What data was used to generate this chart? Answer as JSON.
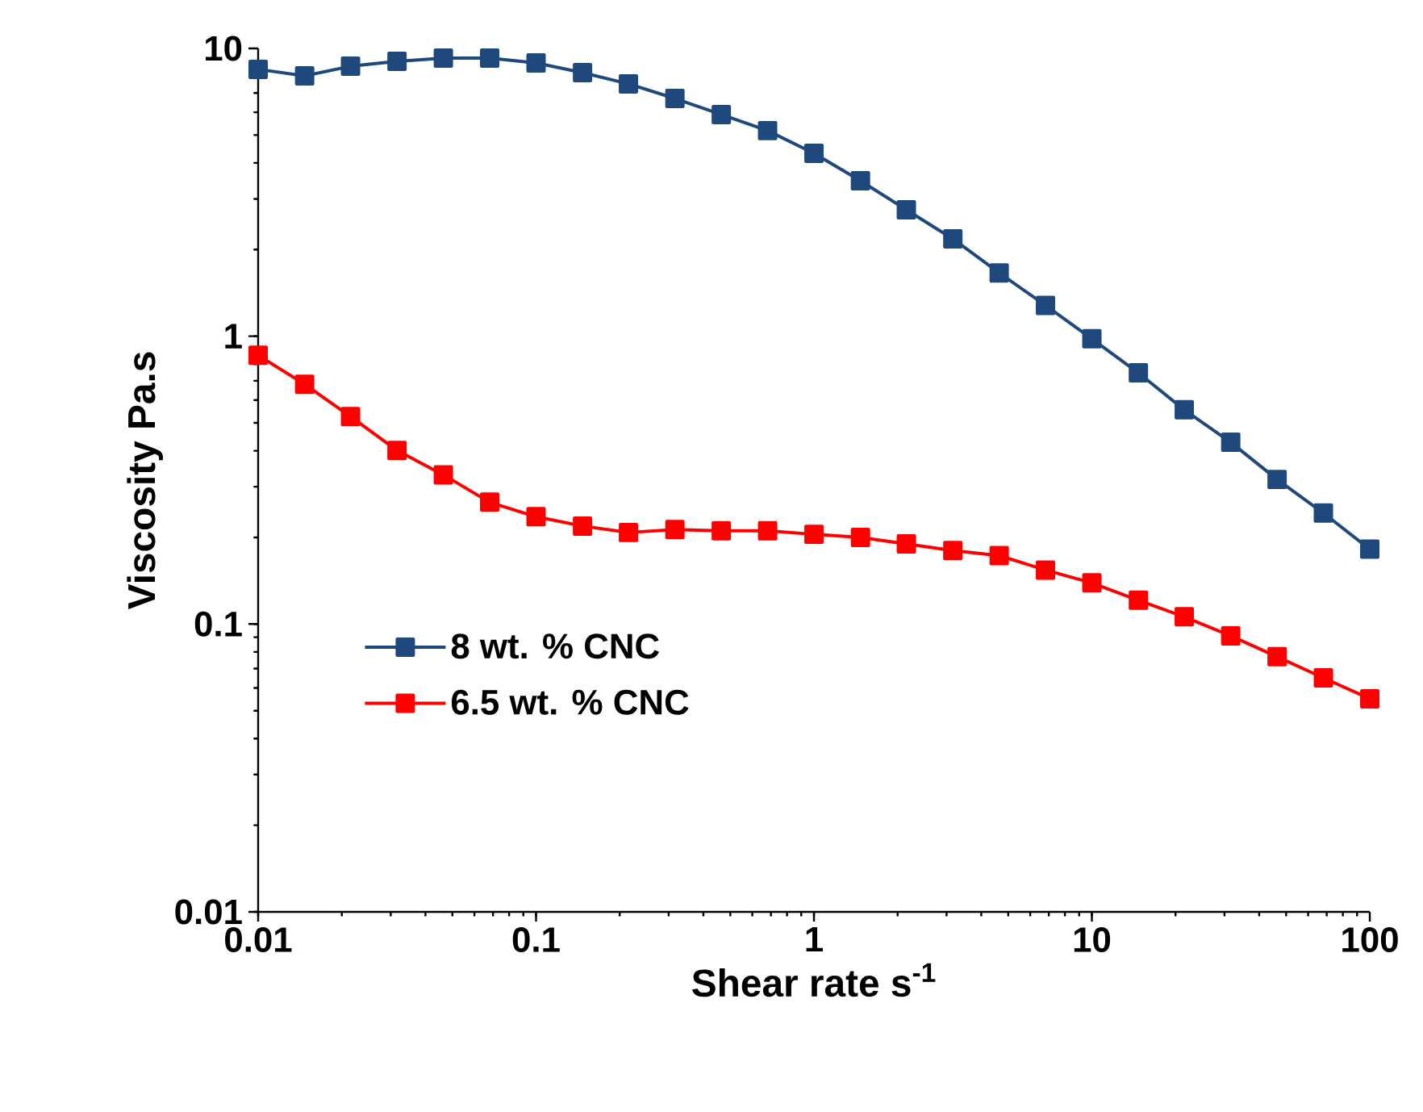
{
  "chart_data": {
    "type": "line",
    "xlabel": "Shear rate s$^{-1}$",
    "ylabel": "Viscosity Pa.s",
    "log": "xy",
    "xlim": [
      0.01,
      100
    ],
    "ylim": [
      0.01,
      10
    ],
    "xticks": [
      0.01,
      0.1,
      1,
      10,
      100
    ],
    "yticks": [
      0.01,
      0.1,
      1,
      10
    ],
    "x": [
      0.01,
      0.0147,
      0.0215,
      0.0316,
      0.0464,
      0.0681,
      0.1,
      0.147,
      0.215,
      0.316,
      0.464,
      0.681,
      1,
      1.47,
      2.15,
      3.16,
      4.64,
      6.81,
      10,
      14.7,
      21.5,
      31.6,
      46.4,
      68.1,
      100
    ],
    "series": [
      {
        "name": "8 wt. % CNC",
        "color": "#1f497d",
        "values": [
          8.46,
          8.03,
          8.67,
          9.02,
          9.25,
          9.25,
          8.9,
          8.24,
          7.53,
          6.7,
          5.89,
          5.18,
          4.32,
          3.47,
          2.75,
          2.18,
          1.66,
          1.28,
          0.98,
          0.746,
          0.555,
          0.428,
          0.318,
          0.243,
          0.182
        ]
      },
      {
        "name": "6.5 wt. % CNC",
        "color": "#ff0000",
        "values": [
          0.859,
          0.681,
          0.526,
          0.401,
          0.33,
          0.265,
          0.236,
          0.219,
          0.208,
          0.213,
          0.211,
          0.211,
          0.205,
          0.2,
          0.19,
          0.18,
          0.173,
          0.154,
          0.139,
          0.121,
          0.106,
          0.091,
          0.077,
          0.065,
          0.055
        ]
      }
    ],
    "marker": "square",
    "line_style": "solid",
    "legend": "left",
    "grid": false
  }
}
